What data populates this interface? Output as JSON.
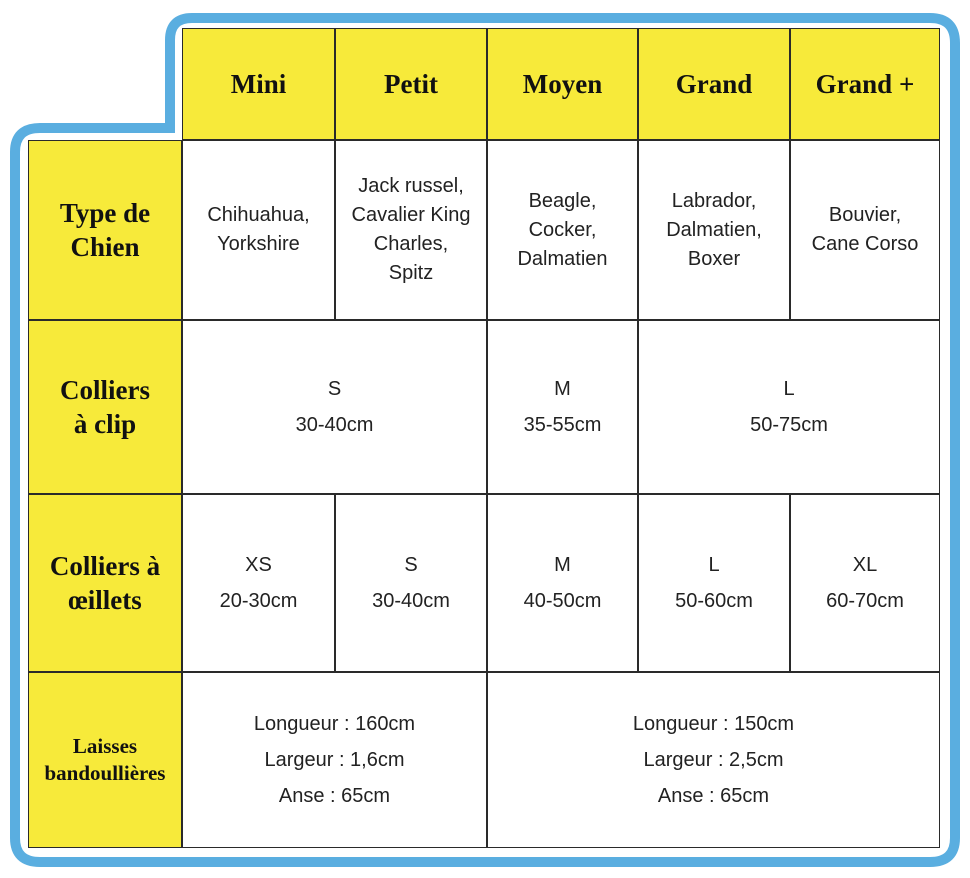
{
  "header": {
    "columns": [
      "Mini",
      "Petit",
      "Moyen",
      "Grand",
      "Grand +"
    ]
  },
  "rows": [
    {
      "label": [
        "Type de",
        "Chien"
      ],
      "cells": [
        [
          "Chihuahua,",
          "Yorkshire"
        ],
        [
          "Jack russel,",
          "Cavalier King",
          "Charles,",
          "Spitz"
        ],
        [
          "Beagle,",
          "Cocker,",
          "Dalmatien"
        ],
        [
          "Labrador,",
          "Dalmatien,",
          "Boxer"
        ],
        [
          "Bouvier,",
          "Cane Corso"
        ]
      ]
    },
    {
      "label": [
        "Colliers",
        "à clip"
      ],
      "cells": [
        [
          "S",
          "30-40cm"
        ],
        [
          "M",
          "35-55cm"
        ],
        [
          "L",
          "50-75cm"
        ]
      ]
    },
    {
      "label": [
        "Colliers à",
        "œillets"
      ],
      "cells": [
        [
          "XS",
          "20-30cm"
        ],
        [
          "S",
          "30-40cm"
        ],
        [
          "M",
          "40-50cm"
        ],
        [
          "L",
          "50-60cm"
        ],
        [
          "XL",
          "60-70cm"
        ]
      ]
    },
    {
      "label": [
        "Laisses",
        "bandoullières"
      ],
      "cells": [
        [
          "Longueur : 160cm",
          "Largeur : 1,6cm",
          "Anse : 65cm"
        ],
        [
          "Longueur : 150cm",
          "Largeur : 2,5cm",
          "Anse : 65cm"
        ]
      ]
    }
  ]
}
